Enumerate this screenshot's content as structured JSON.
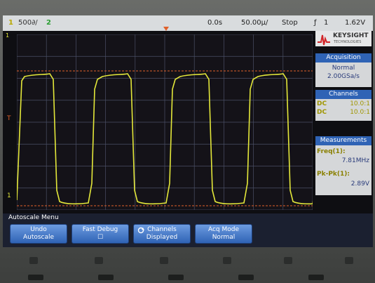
{
  "topbar": {
    "channel1_num": "1",
    "channel1_scale": "500∂/",
    "channel2_num": "2",
    "delay": "0.0s",
    "timebase": "50.00µ/",
    "run_state": "Stop",
    "trig_label": "ƒ",
    "trig_channel": "1",
    "trig_level": "1.62V"
  },
  "brand": {
    "name": "KEYSIGHT",
    "subtitle": "TECHNOLOGIES"
  },
  "acquisition": {
    "title": "Acquisition",
    "mode": "Normal",
    "rate": "2.00GSa/s"
  },
  "channels": {
    "title": "Channels",
    "rows": [
      {
        "coupling": "DC",
        "ratio": "10.0:1"
      },
      {
        "coupling": "DC",
        "ratio": "10.0:1"
      }
    ]
  },
  "measurements": {
    "title": "Measurements",
    "freq_label": "Freq(1):",
    "freq_value": "7.81MHz",
    "pkpk_label": "Pk-Pk(1):",
    "pkpk_value": "2.89V"
  },
  "markers": {
    "trigger_level": "T",
    "ground": "1"
  },
  "softkeys": {
    "menu_title": "Autoscale Menu",
    "keys": [
      {
        "line1": "Undo",
        "line2": "Autoscale"
      },
      {
        "line1": "Fast Debug",
        "line2": "☐"
      },
      {
        "line1": "Channels",
        "line2": "Displayed"
      },
      {
        "line1": "Acq Mode",
        "line2": "Normal"
      }
    ]
  },
  "colors": {
    "ch1": "#e4e83a",
    "ch2": "#3bd64a",
    "grid": "#4a4f66",
    "ref_line": "#e0602a",
    "panel_head": "#2f63b5",
    "measure_value": "#283a7a"
  },
  "waveform": {
    "channel": "1",
    "type": "square",
    "periods_visible": 4
  }
}
